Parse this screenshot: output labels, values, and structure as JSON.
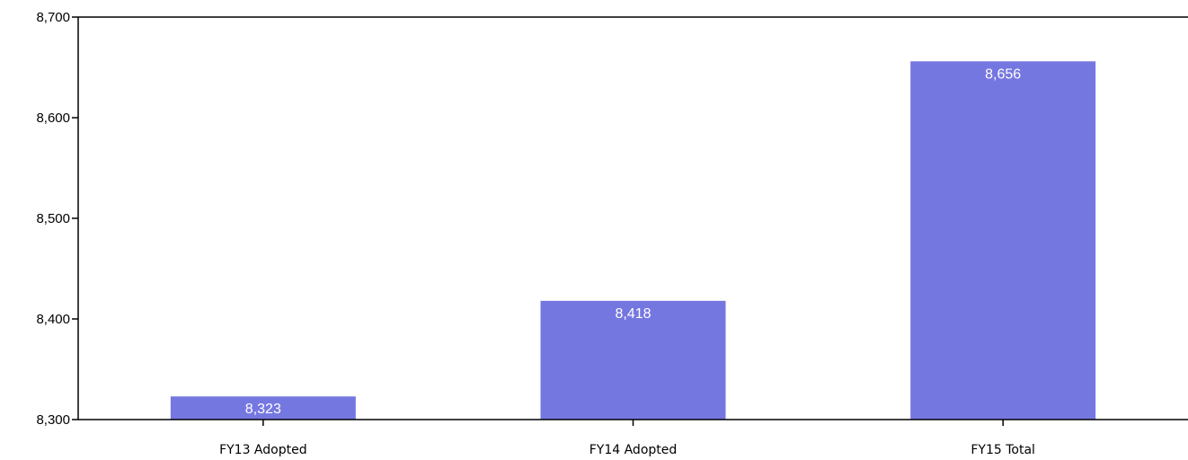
{
  "chart_data": {
    "type": "bar",
    "title": "",
    "xlabel": "",
    "ylabel": "",
    "categories": [
      "FY13 Adopted",
      "FY14 Adopted",
      "FY15 Total"
    ],
    "values": [
      8323,
      8418,
      8656
    ],
    "data_labels": [
      "8,323",
      "8,418",
      "8,656"
    ],
    "ylim": [
      8300,
      8700
    ],
    "yticks": [
      8300,
      8400,
      8500,
      8600,
      8700
    ],
    "ytick_labels": [
      "8,300",
      "8,400",
      "8,500",
      "8,600",
      "8,700"
    ],
    "grid": false,
    "legend": "none",
    "bar_color": "#7577e1"
  }
}
